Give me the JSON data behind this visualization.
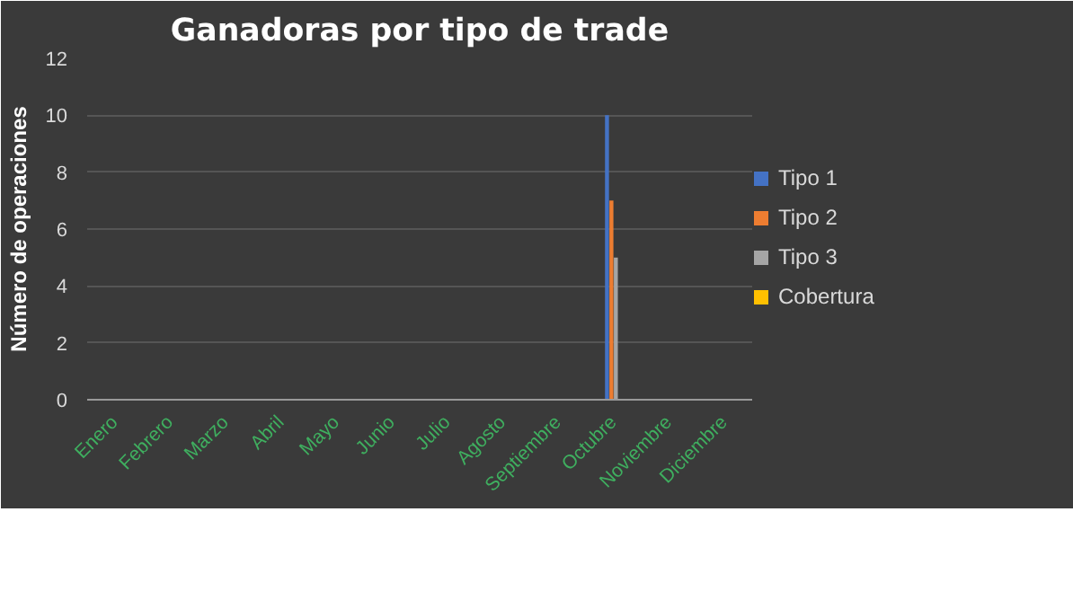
{
  "chart_data": {
    "type": "bar",
    "title": "Ganadoras por tipo de trade",
    "ylabel": "Número de operaciones",
    "categories": [
      "Enero",
      "Febrero",
      "Marzo",
      "Abril",
      "Mayo",
      "Junio",
      "Julio",
      "Agosto",
      "Septiembre",
      "Octubre",
      "Noviembre",
      "Diciembre"
    ],
    "series": [
      {
        "name": "Tipo 1",
        "color": "#4472c4",
        "values": [
          0,
          0,
          0,
          0,
          0,
          0,
          0,
          0,
          0,
          10,
          0,
          0
        ]
      },
      {
        "name": "Tipo 2",
        "color": "#ed7d31",
        "values": [
          0,
          0,
          0,
          0,
          0,
          0,
          0,
          0,
          0,
          7,
          0,
          0
        ]
      },
      {
        "name": "Tipo 3",
        "color": "#a5a5a5",
        "values": [
          0,
          0,
          0,
          0,
          0,
          0,
          0,
          0,
          0,
          5,
          0,
          0
        ]
      },
      {
        "name": "Cobertura",
        "color": "#ffc000",
        "values": [
          0,
          0,
          0,
          0,
          0,
          0,
          0,
          0,
          0,
          0,
          0,
          0
        ]
      }
    ],
    "ylim": [
      0,
      12
    ],
    "yticks": [
      0,
      2,
      4,
      6,
      8,
      10,
      12
    ],
    "grid": "y",
    "legend": "right"
  }
}
